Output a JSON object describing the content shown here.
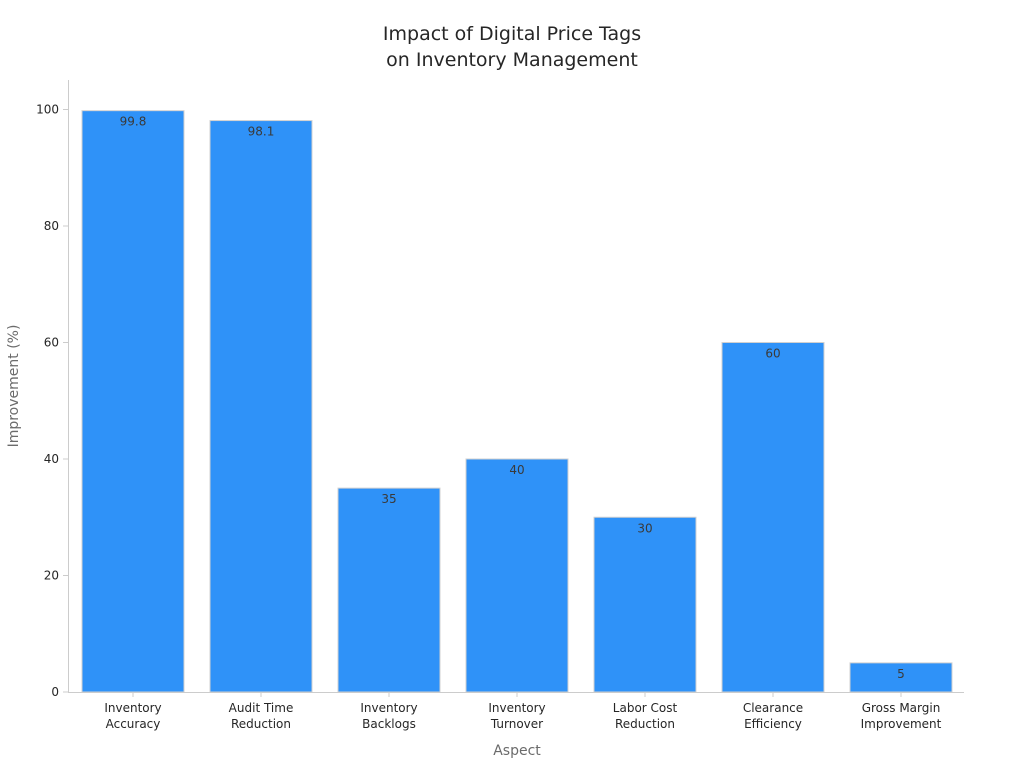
{
  "chart_data": {
    "type": "bar",
    "title_lines": [
      "Impact of Digital Price Tags",
      "on Inventory Management"
    ],
    "xlabel": "Aspect",
    "ylabel": "Improvement (%)",
    "categories": [
      [
        "Inventory",
        "Accuracy"
      ],
      [
        "Audit Time",
        "Reduction"
      ],
      [
        "Inventory",
        "Backlogs"
      ],
      [
        "Inventory",
        "Turnover"
      ],
      [
        "Labor Cost",
        "Reduction"
      ],
      [
        "Clearance",
        "Efficiency"
      ],
      [
        "Gross Margin",
        "Improvement"
      ]
    ],
    "values": [
      99.8,
      98.1,
      35,
      40,
      30,
      60,
      5
    ],
    "value_labels": [
      "99.8",
      "98.1",
      "35",
      "40",
      "30",
      "60",
      "5"
    ],
    "ylim": [
      0,
      105
    ],
    "yticks": [
      0,
      20,
      40,
      60,
      80,
      100
    ],
    "grid": false,
    "bar_color": "#2f92f8",
    "bar_edge_color": "#d0d0d0",
    "axis_color": "#cccccc",
    "text_color": "#262626"
  }
}
